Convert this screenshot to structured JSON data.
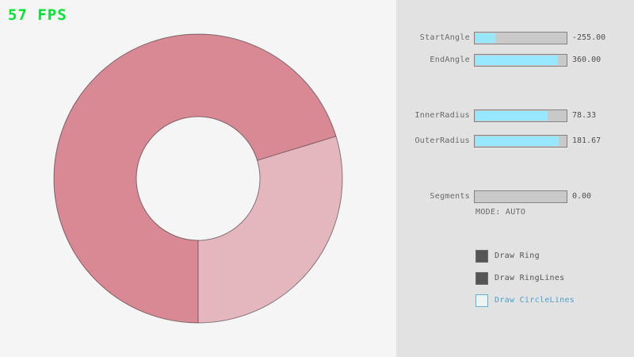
{
  "fps_label": "57 FPS",
  "colors": {
    "fps_green": "#00e430",
    "background": "#f5f5f5",
    "panel_background": "#e2e2e2",
    "slider_fill": "#97e8ff",
    "slider_track": "#c9c9c9",
    "slider_border": "#838383",
    "label_text": "#686868",
    "checkbox_checked_fill": "#555555",
    "checkbox_unchecked_border": "#5bb2d9",
    "checkbox_unchecked_text": "#4ba0cc"
  },
  "ring": {
    "color_overlap": "#d98994",
    "color_single_pass": "#e4b6be",
    "line_color": "#000000"
  },
  "panel": {
    "sliders": [
      {
        "label": "StartAngle",
        "value": "-255.00",
        "fill_pct": 21.7
      },
      {
        "label": "EndAngle",
        "value": "360.00",
        "fill_pct": 90.0
      },
      {
        "label": "InnerRadius",
        "value": "78.33",
        "fill_pct": 78.3
      },
      {
        "label": "OuterRadius",
        "value": "181.67",
        "fill_pct": 90.8
      },
      {
        "label": "Segments",
        "value": "0.00",
        "fill_pct": 0
      }
    ],
    "mode_label": "MODE: AUTO",
    "checkboxes": [
      {
        "label": "Draw Ring",
        "checked": true
      },
      {
        "label": "Draw RingLines",
        "checked": true
      },
      {
        "label": "Draw CircleLines",
        "checked": false
      }
    ]
  }
}
